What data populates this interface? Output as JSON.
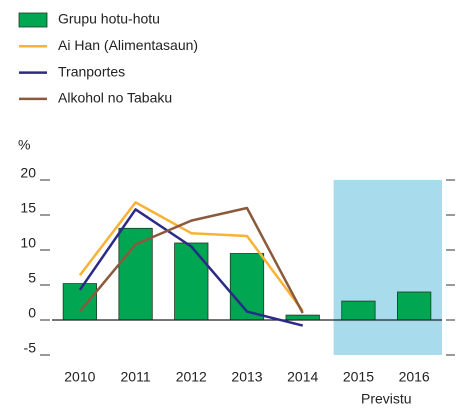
{
  "chart_data": {
    "type": "bar_line",
    "y_unit_label": "%",
    "categories": [
      "2010",
      "2011",
      "2012",
      "2013",
      "2014",
      "2015",
      "2016"
    ],
    "series": [
      {
        "name": "Grupu hotu-hotu",
        "type": "bar",
        "color": "#00a651",
        "values": [
          5.2,
          13.1,
          11.0,
          9.5,
          0.7,
          2.7,
          4.0
        ]
      },
      {
        "name": "Ai Han (Alimentasaun)",
        "type": "line",
        "color": "#f9b233",
        "values": [
          6.4,
          16.8,
          12.4,
          12.0,
          1.3,
          null,
          null
        ]
      },
      {
        "name": "Tranportes",
        "type": "line",
        "color": "#2b2a86",
        "values": [
          4.3,
          15.8,
          10.5,
          1.2,
          -0.8,
          null,
          null
        ]
      },
      {
        "name": "Alkohol no Tabaku",
        "type": "line",
        "color": "#8b5a3c",
        "values": [
          1.2,
          10.8,
          14.2,
          16.0,
          1.0,
          null,
          null
        ]
      }
    ],
    "forecast": {
      "label": "Previstu",
      "categories": [
        "2015",
        "2016"
      ],
      "color": "#a8dbec"
    },
    "ylim": [
      -5,
      20
    ],
    "yticks": [
      {
        "value": -5,
        "label": "-5"
      },
      0,
      5,
      10,
      15,
      20
    ],
    "grid": false,
    "legend": "top-left"
  }
}
